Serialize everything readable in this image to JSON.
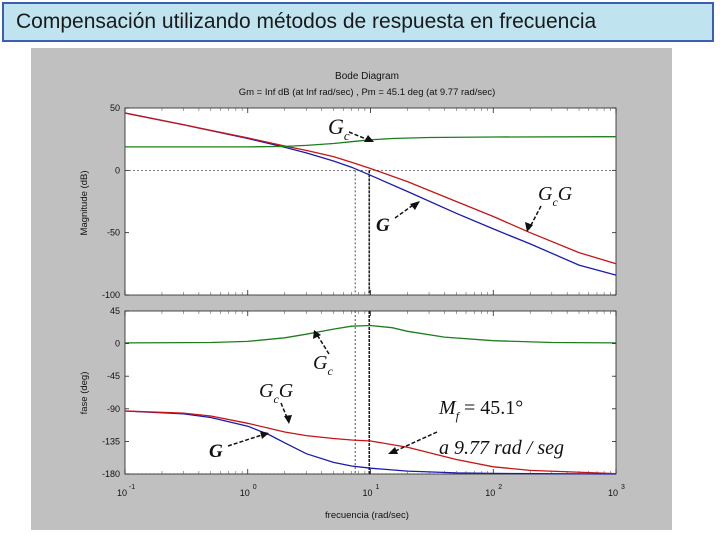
{
  "slide_title": "Compensación utilizando métodos de respuesta en frecuencia",
  "chart_data": {
    "type": "line",
    "title": "Bode Diagram",
    "subtitle": "Gm = Inf dB (at Inf rad/sec) ,  Pm = 45.1 deg (at 9.77 rad/sec)",
    "xlabel": "frecuencia  (rad/sec)",
    "x_scale": "log",
    "xlim": [
      0.1,
      1000
    ],
    "x_tick_labels": [
      "10",
      "10",
      "10",
      "10",
      "10"
    ],
    "x_tick_exponents": [
      "-1",
      "0",
      "1",
      "2",
      "3"
    ],
    "grid": false,
    "magnitude": {
      "ylabel": "Magnitude (dB)",
      "ylim": [
        -100,
        50
      ],
      "y_ticks": [
        "50",
        "0",
        "-50",
        "-100"
      ],
      "series": [
        {
          "color": "#1a1ab0",
          "x": [
            0.1,
            0.3,
            1,
            2,
            3,
            5,
            7,
            10,
            20,
            50,
            100,
            200,
            500,
            1000
          ],
          "y": [
            46,
            36.5,
            25.5,
            18.5,
            14,
            7.5,
            2.5,
            -4,
            -17,
            -34.5,
            -47,
            -59,
            -76,
            -84
          ]
        },
        {
          "color": "#c81414",
          "x": [
            0.1,
            0.3,
            1,
            2,
            3,
            5,
            7,
            10,
            20,
            50,
            100,
            200,
            500,
            1000
          ],
          "y": [
            46,
            36.5,
            26,
            19.5,
            16,
            11,
            6.5,
            1.5,
            -9,
            -25,
            -37,
            -50,
            -66,
            -75
          ]
        },
        {
          "color": "#1e7e1e",
          "x": [
            0.1,
            1,
            2,
            3,
            5,
            7,
            10,
            15,
            30,
            100,
            1000
          ],
          "y": [
            18.8,
            18.8,
            19.2,
            20,
            21.5,
            23,
            24.5,
            25.5,
            26.3,
            26.7,
            27
          ]
        }
      ],
      "crossover_guides": [
        7.5,
        9.77
      ]
    },
    "phase": {
      "ylabel": "fase (deg)",
      "ylim": [
        -180,
        45
      ],
      "y_ticks": [
        "45",
        "0",
        "-45",
        "-90",
        "-135",
        "-180"
      ],
      "series": [
        {
          "color": "#1a1ab0",
          "x": [
            0.1,
            0.3,
            0.5,
            1,
            1.5,
            2,
            3,
            5,
            7,
            10,
            20,
            50,
            100,
            1000
          ],
          "y": [
            -93,
            -97,
            -102,
            -114,
            -126,
            -137,
            -152,
            -164,
            -169,
            -172,
            -176,
            -178.5,
            -179.2,
            -180
          ]
        },
        {
          "color": "#c81414",
          "x": [
            0.1,
            0.3,
            0.5,
            1,
            2,
            3,
            5,
            7,
            10,
            20,
            50,
            100,
            200,
            1000
          ],
          "y": [
            -93,
            -96,
            -100,
            -110,
            -122,
            -127,
            -131,
            -133,
            -134.5,
            -143,
            -160,
            -170,
            -175,
            -179.5
          ]
        },
        {
          "color": "#1e7e1e",
          "x": [
            0.1,
            0.5,
            1,
            2,
            3,
            5,
            7,
            10,
            15,
            20,
            40,
            100,
            300,
            1000
          ],
          "y": [
            1,
            1.5,
            3,
            8,
            13,
            20,
            24,
            25,
            22,
            17,
            9,
            4,
            1.5,
            1
          ]
        }
      ],
      "crossover_guides": [
        7.5,
        9.77
      ]
    },
    "annotations": {
      "gc_mag": "G",
      "gc_mag_sub": "c",
      "gcg_mag": "G",
      "gcg_mag_sub": "c",
      "gcg_mag_tail": "G",
      "g_mag": "G",
      "gc_phase": "G",
      "gc_phase_sub": "c",
      "gcg_phase": "G",
      "gcg_phase_sub": "c",
      "gcg_phase_tail": "G",
      "g_phase": "G",
      "mf_label": "M",
      "mf_sub": "f",
      "mf_value": " = 45.1°",
      "freq_label": "a 9.77 rad / seg"
    }
  }
}
